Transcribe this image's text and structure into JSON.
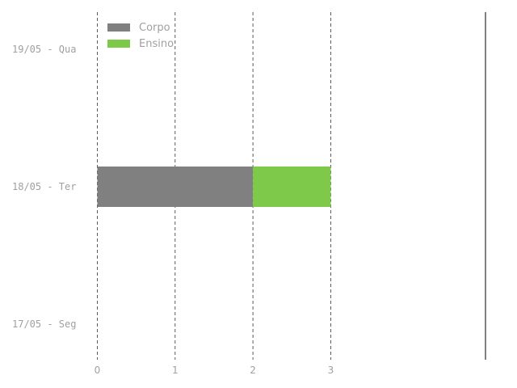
{
  "chart_data": {
    "type": "bar",
    "orientation": "horizontal",
    "stacked": true,
    "categories": [
      "19/05 - Qua",
      "18/05 - Ter",
      "17/05 - Seg"
    ],
    "series": [
      {
        "name": "Corpo",
        "color": "#808080",
        "values": [
          0,
          2,
          0
        ]
      },
      {
        "name": "Ensino",
        "color": "#7ec94a",
        "values": [
          0,
          1,
          0
        ]
      }
    ],
    "x_ticks": [
      "0",
      "1",
      "2",
      "3"
    ],
    "xlim": [
      0,
      5
    ],
    "grid": true,
    "legend_position": "top-left"
  }
}
